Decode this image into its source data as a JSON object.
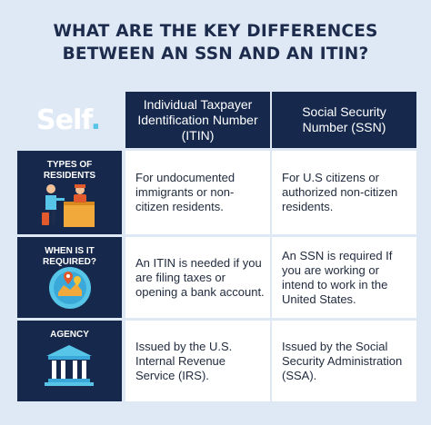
{
  "title": {
    "line1": "WHAT ARE THE KEY DIFFERENCES",
    "line2": "BETWEEN AN SSN AND AN ITIN?"
  },
  "logo": {
    "text": "Self",
    "dot": "."
  },
  "columns": {
    "itin": {
      "line1": "Individual Taxpayer",
      "line2": "Identification Number",
      "line3": "(ITIN)"
    },
    "ssn": {
      "line1": "Social Security",
      "line2": "Number (SSN)"
    }
  },
  "rows": [
    {
      "label1": "TYPES OF",
      "label2": "RESIDENTS",
      "icon": "residents-illustration",
      "itin": "For undocumented immigrants or non-citizen residents.",
      "ssn": "For U.S citizens or authorized non-citizen residents."
    },
    {
      "label1": "WHEN IS IT",
      "label2": "REQUIRED?",
      "icon": "globe-map-pins-icon",
      "itin": "An ITIN is needed if you are filing taxes or opening a bank account.",
      "ssn": "An SSN is required If you are working or intend to work in the United States."
    },
    {
      "label1": "AGENCY",
      "label2": "",
      "icon": "government-building-icon",
      "itin": "Issued by the U.S. Internal Revenue Service (IRS).",
      "ssn": "Issued by the Social Security Administration (SSA)."
    }
  ],
  "colors": {
    "background": "#dfe9f5",
    "navy": "#16294d",
    "accent_blue": "#56c5e8",
    "text_dark": "#1f2a3d"
  }
}
